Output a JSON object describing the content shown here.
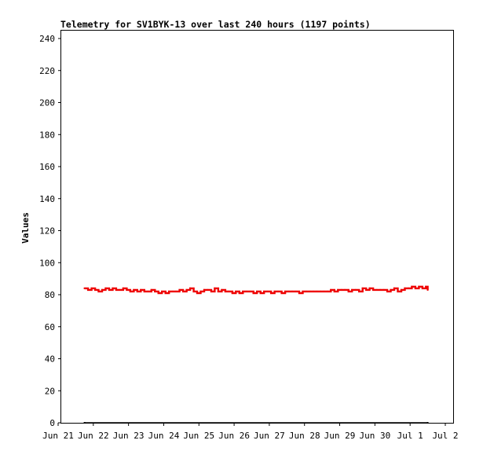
{
  "chart_data": {
    "type": "line",
    "title": "Telemetry for SV1BYK-13 over last 240 hours (1197 points)",
    "ylabel": "Values",
    "xlabel": "",
    "ylim": [
      0,
      256
    ],
    "yticks": [
      0,
      20,
      40,
      60,
      80,
      100,
      120,
      140,
      160,
      180,
      200,
      220,
      240
    ],
    "xlim": [
      0,
      10.55
    ],
    "xticks": [
      {
        "label": "Jun 21",
        "x": 0
      },
      {
        "label": "Jun 22",
        "x": 1
      },
      {
        "label": "Jun 23",
        "x": 2
      },
      {
        "label": "Jun 24",
        "x": 3
      },
      {
        "label": "Jun 25",
        "x": 4
      },
      {
        "label": "Jun 26",
        "x": 5
      },
      {
        "label": "Jun 27",
        "x": 6
      },
      {
        "label": "Jun 28",
        "x": 7
      },
      {
        "label": "Jun 29",
        "x": 8
      },
      {
        "label": "Jun 30",
        "x": 9
      },
      {
        "label": "Jul 1",
        "x": 10
      },
      {
        "label": "Jul 2",
        "x": 11
      }
    ],
    "grid": false,
    "legend": "none",
    "series": [
      {
        "color": "#ee0000",
        "x": [
          0.75,
          0.85,
          0.95,
          1.05,
          1.15,
          1.25,
          1.35,
          1.45,
          1.55,
          1.65,
          1.75,
          1.85,
          1.95,
          2.05,
          2.15,
          2.25,
          2.35,
          2.45,
          2.55,
          2.65,
          2.75,
          2.85,
          2.95,
          3.05,
          3.15,
          3.25,
          3.35,
          3.45,
          3.55,
          3.65,
          3.75,
          3.85,
          3.95,
          4.05,
          4.15,
          4.25,
          4.35,
          4.45,
          4.55,
          4.65,
          4.75,
          4.85,
          4.95,
          5.05,
          5.15,
          5.25,
          5.35,
          5.45,
          5.55,
          5.65,
          5.75,
          5.85,
          5.95,
          6.05,
          6.15,
          6.25,
          6.35,
          6.45,
          6.55,
          6.65,
          6.75,
          6.85,
          6.95,
          7.05,
          7.15,
          7.25,
          7.35,
          7.45,
          7.55,
          7.65,
          7.75,
          7.85,
          7.95,
          8.05,
          8.15,
          8.25,
          8.35,
          8.45,
          8.55,
          8.65,
          8.75,
          8.85,
          8.95,
          9.05,
          9.15,
          9.25,
          9.35,
          9.45,
          9.55,
          9.65,
          9.75,
          9.85,
          9.95,
          10.05,
          10.15,
          10.25,
          10.35,
          10.45,
          10.5
        ],
        "y": [
          84,
          83,
          84,
          83,
          82,
          83,
          84,
          83,
          84,
          83,
          83,
          84,
          83,
          82,
          83,
          82,
          83,
          82,
          82,
          83,
          82,
          81,
          82,
          81,
          82,
          82,
          82,
          83,
          82,
          83,
          84,
          82,
          81,
          82,
          83,
          83,
          82,
          84,
          82,
          83,
          82,
          82,
          81,
          82,
          81,
          82,
          82,
          82,
          81,
          82,
          81,
          82,
          82,
          81,
          82,
          82,
          81,
          82,
          82,
          82,
          82,
          81,
          82,
          82,
          82,
          82,
          82,
          82,
          82,
          82,
          83,
          82,
          83,
          83,
          83,
          82,
          83,
          83,
          82,
          84,
          83,
          84,
          83,
          83,
          83,
          83,
          82,
          83,
          84,
          82,
          83,
          84,
          84,
          85,
          84,
          85,
          84,
          85,
          83
        ]
      },
      {
        "color": "#000000",
        "x": [
          0.75,
          10.5
        ],
        "y": [
          0,
          0
        ]
      }
    ]
  }
}
